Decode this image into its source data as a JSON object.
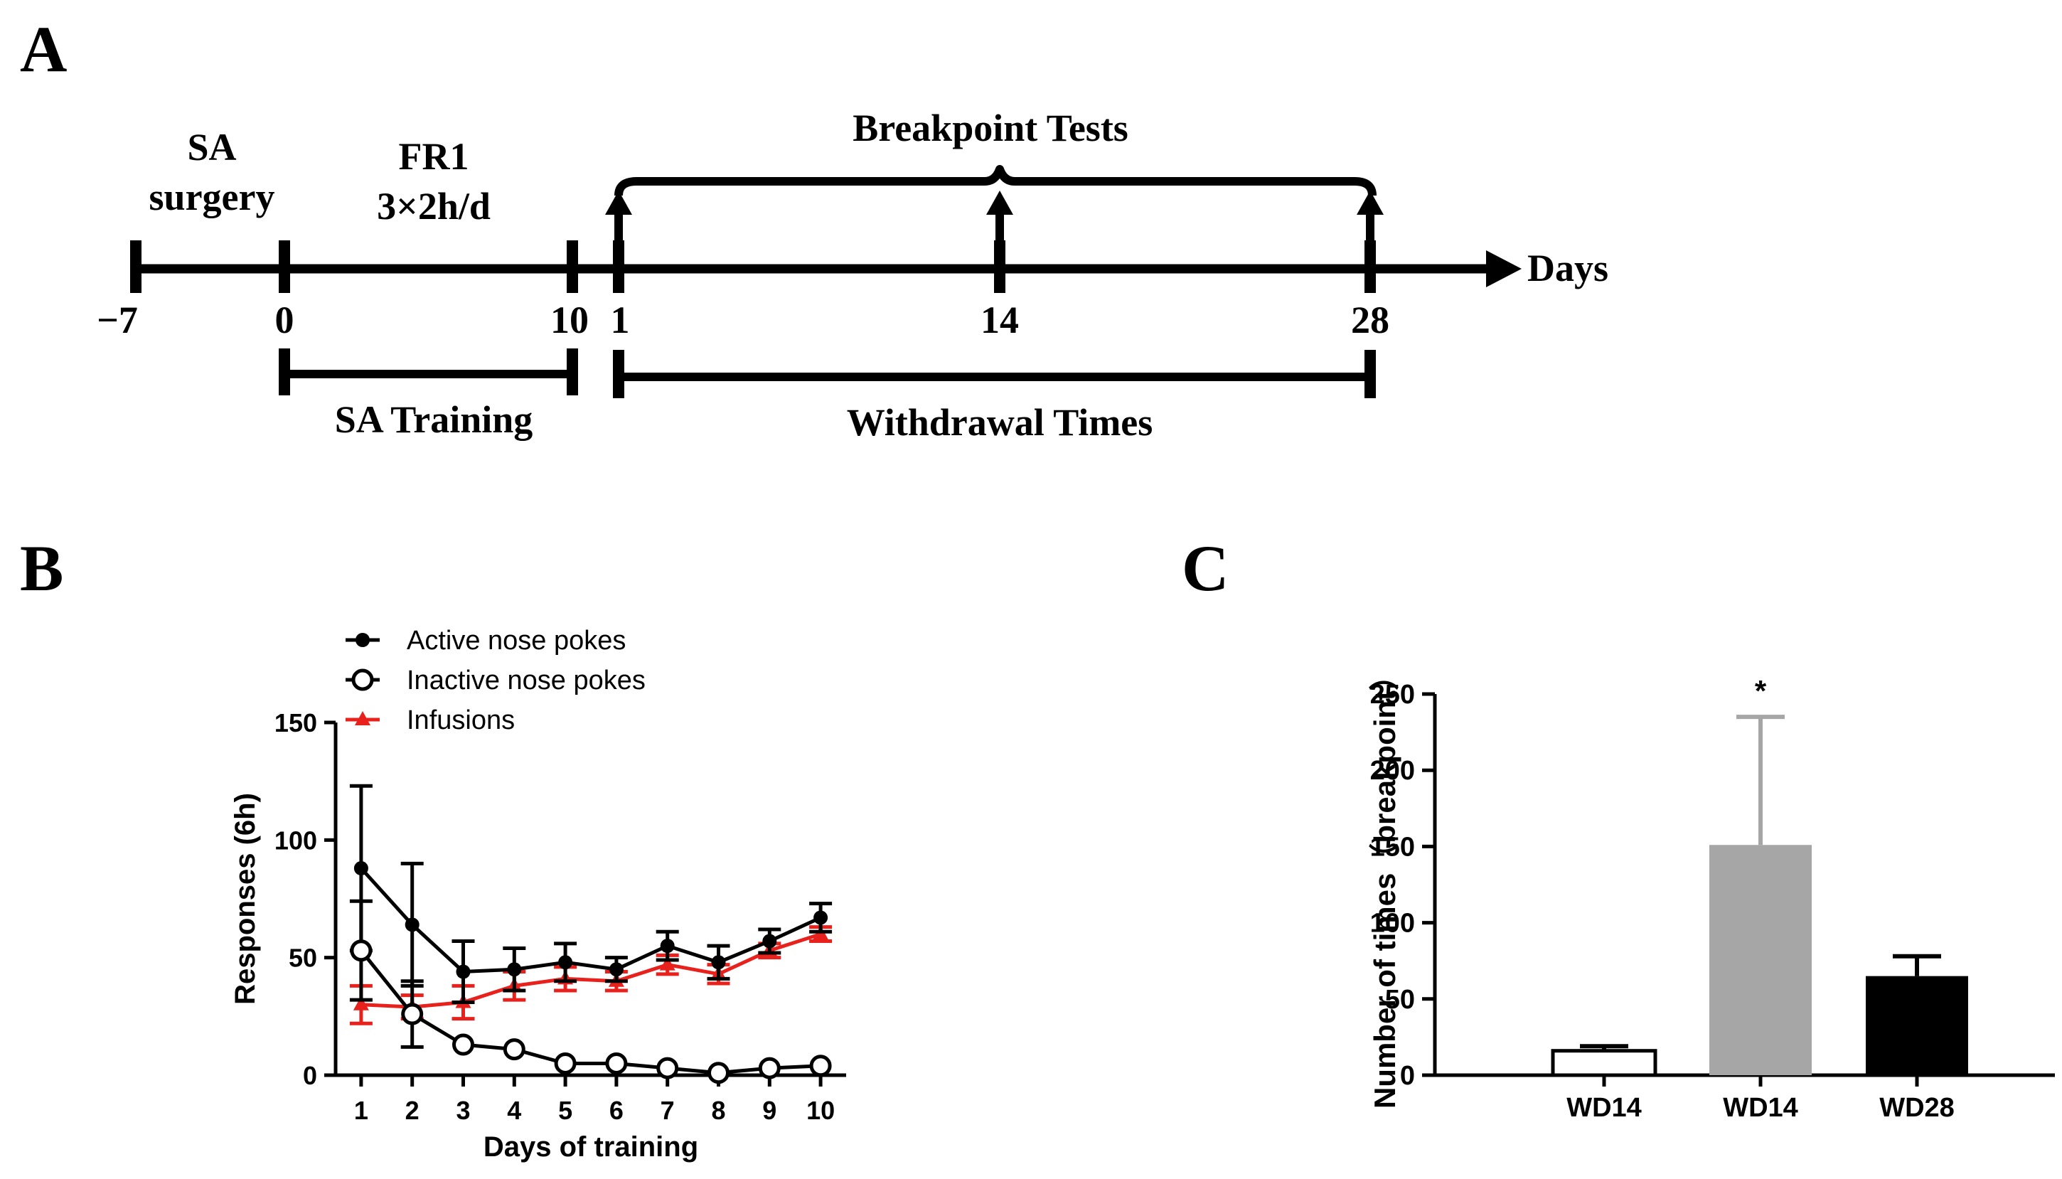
{
  "panel_labels": {
    "a": "A",
    "b": "B",
    "c": "C"
  },
  "timeline": {
    "day_labels": [
      "−7",
      "0",
      "10",
      "1",
      "14",
      "28"
    ],
    "axis_label": "Days",
    "labels": {
      "sa_surgery_1": "SA",
      "sa_surgery_2": "surgery",
      "fr1_1": "FR1",
      "fr1_2": "3×2h/d",
      "breakpoint_tests": "Breakpoint Tests",
      "sa_training": "SA Training",
      "withdrawal_times": "Withdrawal Times"
    }
  },
  "colors": {
    "black": "#000000",
    "red": "#e8211d",
    "gray": "#a6a6a6",
    "white": "#ffffff"
  },
  "chart_data": [
    {
      "type": "line",
      "title": "",
      "xlabel": "Days of training",
      "ylabel": "Responses (6h)",
      "x": [
        1,
        2,
        3,
        4,
        5,
        6,
        7,
        8,
        9,
        10
      ],
      "xlim": [
        0.5,
        10.5
      ],
      "ylim": [
        0,
        150
      ],
      "yticks": [
        0,
        50,
        100,
        150
      ],
      "legend_position": "top-left",
      "series": [
        {
          "name": "Active nose pokes",
          "marker": "filled-circle",
          "color": "#000000",
          "values": [
            88,
            64,
            44,
            45,
            48,
            45,
            55,
            48,
            57,
            67
          ],
          "errors": [
            35,
            26,
            13,
            9,
            8,
            5,
            6,
            7,
            5,
            6
          ]
        },
        {
          "name": "Inactive nose pokes",
          "marker": "open-circle",
          "color": "#000000",
          "values": [
            53,
            26,
            13,
            11,
            5,
            5,
            3,
            1,
            3,
            4
          ],
          "errors": [
            21,
            14,
            0,
            0,
            0,
            0,
            0,
            0,
            0,
            0
          ]
        },
        {
          "name": "Infusions",
          "marker": "filled-triangle",
          "color": "#e8211d",
          "values": [
            30,
            29,
            31,
            38,
            41,
            40,
            47,
            43,
            53,
            60
          ],
          "errors": [
            8,
            5,
            7,
            6,
            5,
            4,
            4,
            4,
            3,
            3
          ]
        }
      ]
    },
    {
      "type": "bar",
      "title": "",
      "xlabel": "",
      "ylabel": "Number of times（breakpoint）",
      "categories": [
        "WD14",
        "WD14",
        "WD28"
      ],
      "values": [
        16,
        151,
        65
      ],
      "errors": [
        3,
        84,
        13
      ],
      "fill": [
        "#ffffff",
        "#a6a6a6",
        "#000000"
      ],
      "significance": [
        "",
        "*",
        ""
      ],
      "ylim": [
        0,
        250
      ],
      "yticks": [
        0,
        50,
        100,
        150,
        200,
        250
      ]
    }
  ]
}
